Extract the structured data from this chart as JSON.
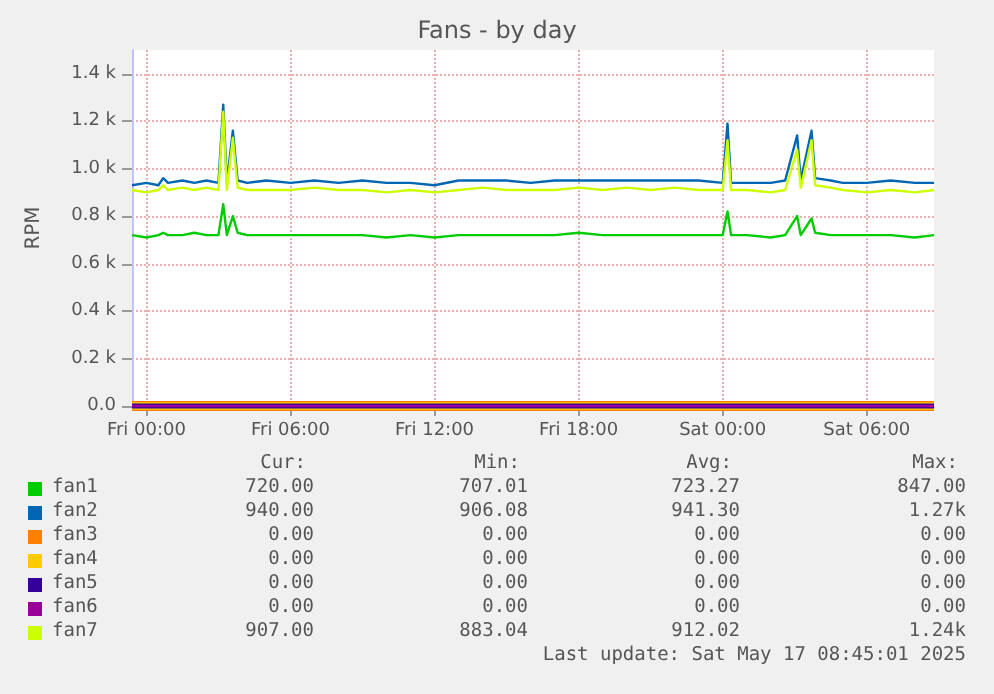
{
  "chart_data": {
    "type": "line",
    "title": "Fans - by day",
    "ylabel": "RPM",
    "xlim": [
      "2025-05-15T23:24",
      "2025-05-17T08:48"
    ],
    "ylim": [
      0,
      1500
    ],
    "xticks": [
      {
        "value": "2025-05-16T00:00",
        "label": "Fri 00:00"
      },
      {
        "value": "2025-05-16T06:00",
        "label": "Fri 06:00"
      },
      {
        "value": "2025-05-16T12:00",
        "label": "Fri 12:00"
      },
      {
        "value": "2025-05-16T18:00",
        "label": "Fri 18:00"
      },
      {
        "value": "2025-05-17T00:00",
        "label": "Sat 00:00"
      },
      {
        "value": "2025-05-17T06:00",
        "label": "Sat 06:00"
      }
    ],
    "yticks": [
      {
        "value": 0,
        "label": "0.0"
      },
      {
        "value": 200,
        "label": "0.2 k"
      },
      {
        "value": 400,
        "label": "0.4 k"
      },
      {
        "value": 600,
        "label": "0.6 k"
      },
      {
        "value": 800,
        "label": "0.8 k"
      },
      {
        "value": 1000,
        "label": "1.0 k"
      },
      {
        "value": 1200,
        "label": "1.2 k"
      },
      {
        "value": 1400,
        "label": "1.4 k"
      }
    ],
    "grid": true,
    "legend": "bottom",
    "marker": "none",
    "line_style": "solid",
    "x": [
      "2025-05-15T23:24",
      "2025-05-16T00:00",
      "2025-05-16T00:30",
      "2025-05-16T00:42",
      "2025-05-16T00:54",
      "2025-05-16T01:30",
      "2025-05-16T02:00",
      "2025-05-16T02:30",
      "2025-05-16T03:00",
      "2025-05-16T03:12",
      "2025-05-16T03:21",
      "2025-05-16T03:36",
      "2025-05-16T03:48",
      "2025-05-16T04:12",
      "2025-05-16T05:00",
      "2025-05-16T06:00",
      "2025-05-16T07:00",
      "2025-05-16T08:00",
      "2025-05-16T09:00",
      "2025-05-16T10:00",
      "2025-05-16T11:00",
      "2025-05-16T12:00",
      "2025-05-16T13:00",
      "2025-05-16T14:00",
      "2025-05-16T15:00",
      "2025-05-16T16:00",
      "2025-05-16T17:00",
      "2025-05-16T18:00",
      "2025-05-16T19:00",
      "2025-05-16T20:00",
      "2025-05-16T21:00",
      "2025-05-16T22:00",
      "2025-05-16T23:00",
      "2025-05-17T00:00",
      "2025-05-17T00:12",
      "2025-05-17T00:21",
      "2025-05-17T01:00",
      "2025-05-17T02:00",
      "2025-05-17T02:36",
      "2025-05-17T03:06",
      "2025-05-17T03:15",
      "2025-05-17T03:42",
      "2025-05-17T03:51",
      "2025-05-17T04:30",
      "2025-05-17T05:00",
      "2025-05-17T06:00",
      "2025-05-17T07:00",
      "2025-05-17T08:00",
      "2025-05-17T08:48"
    ],
    "series": [
      {
        "name": "fan1",
        "color": "#00cc00",
        "values": [
          720,
          710,
          720,
          730,
          720,
          720,
          730,
          720,
          720,
          850,
          720,
          800,
          730,
          720,
          720,
          720,
          720,
          720,
          720,
          710,
          720,
          710,
          720,
          720,
          720,
          720,
          720,
          730,
          720,
          720,
          720,
          720,
          720,
          720,
          820,
          720,
          720,
          710,
          720,
          800,
          720,
          790,
          730,
          720,
          720,
          720,
          720,
          710,
          720
        ]
      },
      {
        "name": "fan2",
        "color": "#0066b3",
        "values": [
          930,
          940,
          930,
          960,
          940,
          950,
          940,
          950,
          940,
          1270,
          940,
          1160,
          950,
          940,
          950,
          940,
          950,
          940,
          950,
          940,
          940,
          930,
          950,
          950,
          950,
          940,
          950,
          950,
          950,
          950,
          950,
          950,
          950,
          940,
          1190,
          940,
          940,
          940,
          950,
          1140,
          950,
          1160,
          960,
          950,
          940,
          940,
          950,
          940,
          940
        ]
      },
      {
        "name": "fan3",
        "color": "#ff8000",
        "x": [
          "2025-05-15T23:24",
          "2025-05-17T08:48"
        ],
        "values": [
          0,
          0
        ]
      },
      {
        "name": "fan4",
        "color": "#ffcc00",
        "x": [
          "2025-05-15T23:24",
          "2025-05-17T08:48"
        ],
        "values": [
          0,
          0
        ]
      },
      {
        "name": "fan5",
        "color": "#330099",
        "x": [
          "2025-05-15T23:24",
          "2025-05-17T08:48"
        ],
        "values": [
          0,
          0
        ]
      },
      {
        "name": "fan6",
        "color": "#990099",
        "x": [
          "2025-05-15T23:24",
          "2025-05-17T08:48"
        ],
        "values": [
          0,
          0
        ]
      },
      {
        "name": "fan7",
        "color": "#ccff00",
        "values": [
          910,
          900,
          910,
          930,
          910,
          920,
          910,
          920,
          910,
          1240,
          910,
          1130,
          920,
          910,
          910,
          910,
          920,
          910,
          910,
          900,
          910,
          900,
          910,
          920,
          910,
          910,
          910,
          920,
          910,
          920,
          910,
          920,
          910,
          910,
          1120,
          910,
          910,
          900,
          910,
          1080,
          920,
          1120,
          930,
          920,
          910,
          900,
          910,
          900,
          910
        ]
      }
    ],
    "annotations": [
      "Cur:",
      "Min:",
      "Avg:",
      "Max:",
      "720.00",
      "707.01",
      "723.27",
      "847.00",
      "940.00",
      "906.08",
      "941.30",
      "1.27k",
      "0.00",
      "0.00",
      "0.00",
      "0.00",
      "0.00",
      "0.00",
      "0.00",
      "0.00",
      "0.00",
      "0.00",
      "0.00",
      "0.00",
      "0.00",
      "0.00",
      "0.00",
      "0.00",
      "907.00",
      "883.04",
      "912.02",
      "1.24k",
      "Last update: Sat May 17 08:45:01 2025"
    ]
  }
}
